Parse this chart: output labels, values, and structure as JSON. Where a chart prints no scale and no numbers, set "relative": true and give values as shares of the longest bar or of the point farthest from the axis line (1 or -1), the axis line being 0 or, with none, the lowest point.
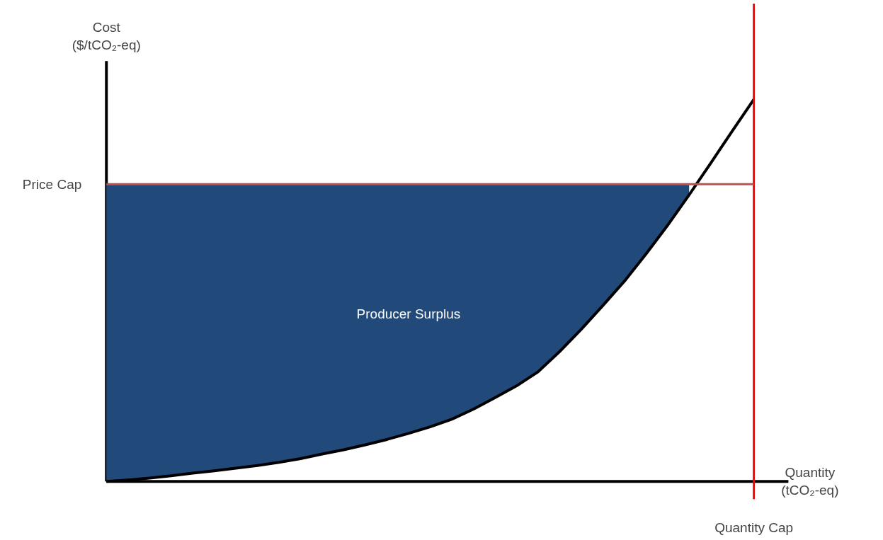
{
  "chart_data": {
    "type": "line",
    "relative": true,
    "ylabel": "Cost\n($/tCO₂-eq)",
    "xlabel": "Quantity\n(tCO₂-eq)",
    "categories": [
      null,
      null,
      null,
      null,
      null,
      null,
      null,
      null,
      null,
      null,
      null,
      null,
      null,
      null,
      null,
      null,
      null,
      null,
      null,
      null,
      null,
      null,
      null,
      null,
      null,
      null,
      null,
      null,
      null,
      null,
      null
    ],
    "series": [
      {
        "type": "area",
        "color": "#214a7b",
        "values": [
          0.778,
          0.778,
          0.778,
          0.778,
          0.778,
          0.778,
          0.778,
          0.778,
          0.778,
          0.778,
          0.778,
          0.778,
          0.778,
          0.778,
          0.778,
          0.778,
          0.778,
          0.778,
          0.778,
          0.778,
          0.778,
          0.778,
          0.778,
          0.778,
          0.778,
          0.778,
          0.778,
          0.778,
          null,
          null,
          null
        ]
      },
      {
        "color": "#000000",
        "values": [
          0,
          0.004,
          0.009,
          0.015,
          0.022,
          0.028,
          0.035,
          0.042,
          0.05,
          0.06,
          0.072,
          0.083,
          0.096,
          0.11,
          0.126,
          0.143,
          0.163,
          0.189,
          0.219,
          0.25,
          0.287,
          0.34,
          0.398,
          0.46,
          0.524,
          0.595,
          0.67,
          0.75,
          0.833,
          0.917,
          1
        ]
      }
    ],
    "ref_lines": [
      {
        "axis": "y",
        "value": 0.778,
        "label": "Price Cap",
        "color": "#c0504d"
      }
    ],
    "annotations": [
      "Producer Surplus",
      "Quantity Cap"
    ],
    "marker": "none",
    "line_style": "solid"
  }
}
